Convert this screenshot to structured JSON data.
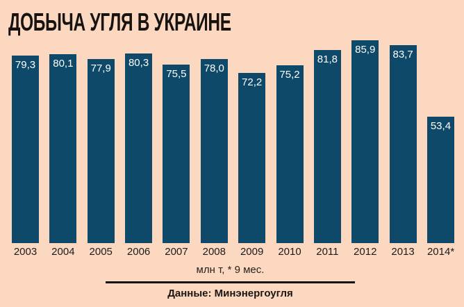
{
  "title": "ДОБЫЧА УГЛЯ В УКРАИНЕ",
  "footer": {
    "units_note": "млн т, * 9 мес.",
    "source": "Данные: Минэнергоугля"
  },
  "colors": {
    "background": "#fcd8c0",
    "bar": "#0f4969",
    "bar_value_text": "#ffffff",
    "text": "#1b1b1b",
    "divider": "#111111"
  },
  "chart_data": {
    "type": "bar",
    "title": "ДОБЫЧА УГЛЯ В УКРАИНЕ",
    "categories": [
      "2003",
      "2004",
      "2005",
      "2006",
      "2007",
      "2008",
      "2009",
      "2010",
      "2011",
      "2012",
      "2013",
      "2014*"
    ],
    "values": [
      79.3,
      80.1,
      77.9,
      80.3,
      75.5,
      78.0,
      72.2,
      75.2,
      81.8,
      85.9,
      83.7,
      53.4
    ],
    "value_labels": [
      "79,3",
      "80,1",
      "77,9",
      "80,3",
      "75,5",
      "78,0",
      "72,2",
      "75,2",
      "81,8",
      "85,9",
      "83,7",
      "53,4"
    ],
    "unit": "млн т",
    "footnote": "* 9 мес.",
    "xlabel": "",
    "ylabel": "",
    "ylim": [
      0,
      103
    ],
    "grid": false,
    "legend": "none",
    "value_labels_position": "inside-top",
    "source": "Данные: Минэнергоугля"
  }
}
